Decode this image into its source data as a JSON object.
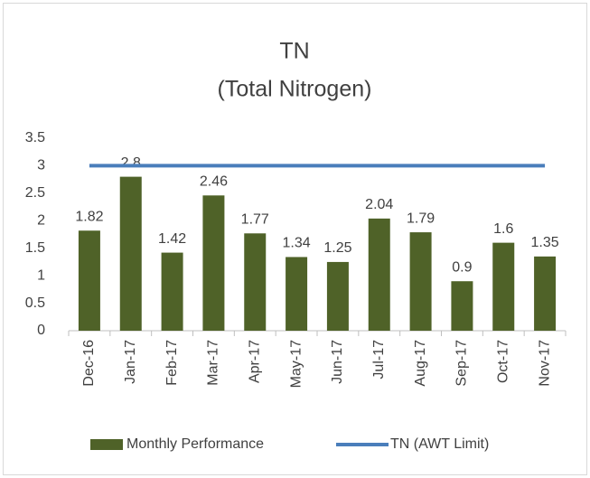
{
  "chart_data": {
    "type": "bar",
    "title": "TN",
    "subtitle": "(Total Nitrogen)",
    "categories": [
      "Dec-16",
      "Jan-17",
      "Feb-17",
      "Mar-17",
      "Apr-17",
      "May-17",
      "Jun-17",
      "Jul-17",
      "Aug-17",
      "Sep-17",
      "Oct-17",
      "Nov-17"
    ],
    "series": [
      {
        "name": "Monthly Performance",
        "type": "bar",
        "color": "#4f6228",
        "values": [
          1.82,
          2.8,
          1.42,
          2.46,
          1.77,
          1.34,
          1.25,
          2.04,
          1.79,
          0.9,
          1.6,
          1.35
        ]
      },
      {
        "name": "TN (AWT Limit)",
        "type": "line",
        "color": "#4a7ebb",
        "values": [
          3,
          3,
          3,
          3,
          3,
          3,
          3,
          3,
          3,
          3,
          3,
          3
        ]
      }
    ],
    "ylim": [
      0,
      3.5
    ],
    "yticks": [
      0,
      0.5,
      1,
      1.5,
      2,
      2.5,
      3,
      3.5
    ],
    "grid": false,
    "legend": "bottom"
  }
}
